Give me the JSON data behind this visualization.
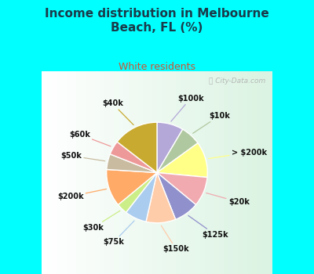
{
  "title": "Income distribution in Melbourne\nBeach, FL (%)",
  "subtitle": "White residents",
  "title_color": "#1a3a4a",
  "subtitle_color": "#cc5533",
  "bg_top_color": "#00ffff",
  "chart_bg_gradient_left": "#c8e8d8",
  "chart_bg_gradient_right": "#f0faf5",
  "watermark": "City-Data.com",
  "labels": [
    "$100k",
    "$10k",
    "> $200k",
    "$20k",
    "$125k",
    "$150k",
    "$75k",
    "$30k",
    "$200k",
    "$50k",
    "$60k",
    "$40k"
  ],
  "sizes": [
    8.5,
    6.5,
    11.5,
    9.5,
    8.0,
    9.5,
    7.0,
    3.5,
    12.0,
    5.0,
    4.5,
    14.5
  ],
  "colors": [
    "#b3a8d8",
    "#b0c8a0",
    "#ffff88",
    "#f0aab0",
    "#9090cc",
    "#ffccaa",
    "#aaccee",
    "#ccee88",
    "#ffaa66",
    "#c8bba0",
    "#ee9999",
    "#c8aa30"
  ],
  "startangle": 90,
  "label_colors": [
    "#aaaacc",
    "#aaccaa",
    "#dddd44",
    "#ffaaaa",
    "#aaaaee",
    "#ffddaa",
    "#aabbee",
    "#ccee88",
    "#ffaa66",
    "#c8bbaa",
    "#ee9999",
    "#c8aa30"
  ]
}
